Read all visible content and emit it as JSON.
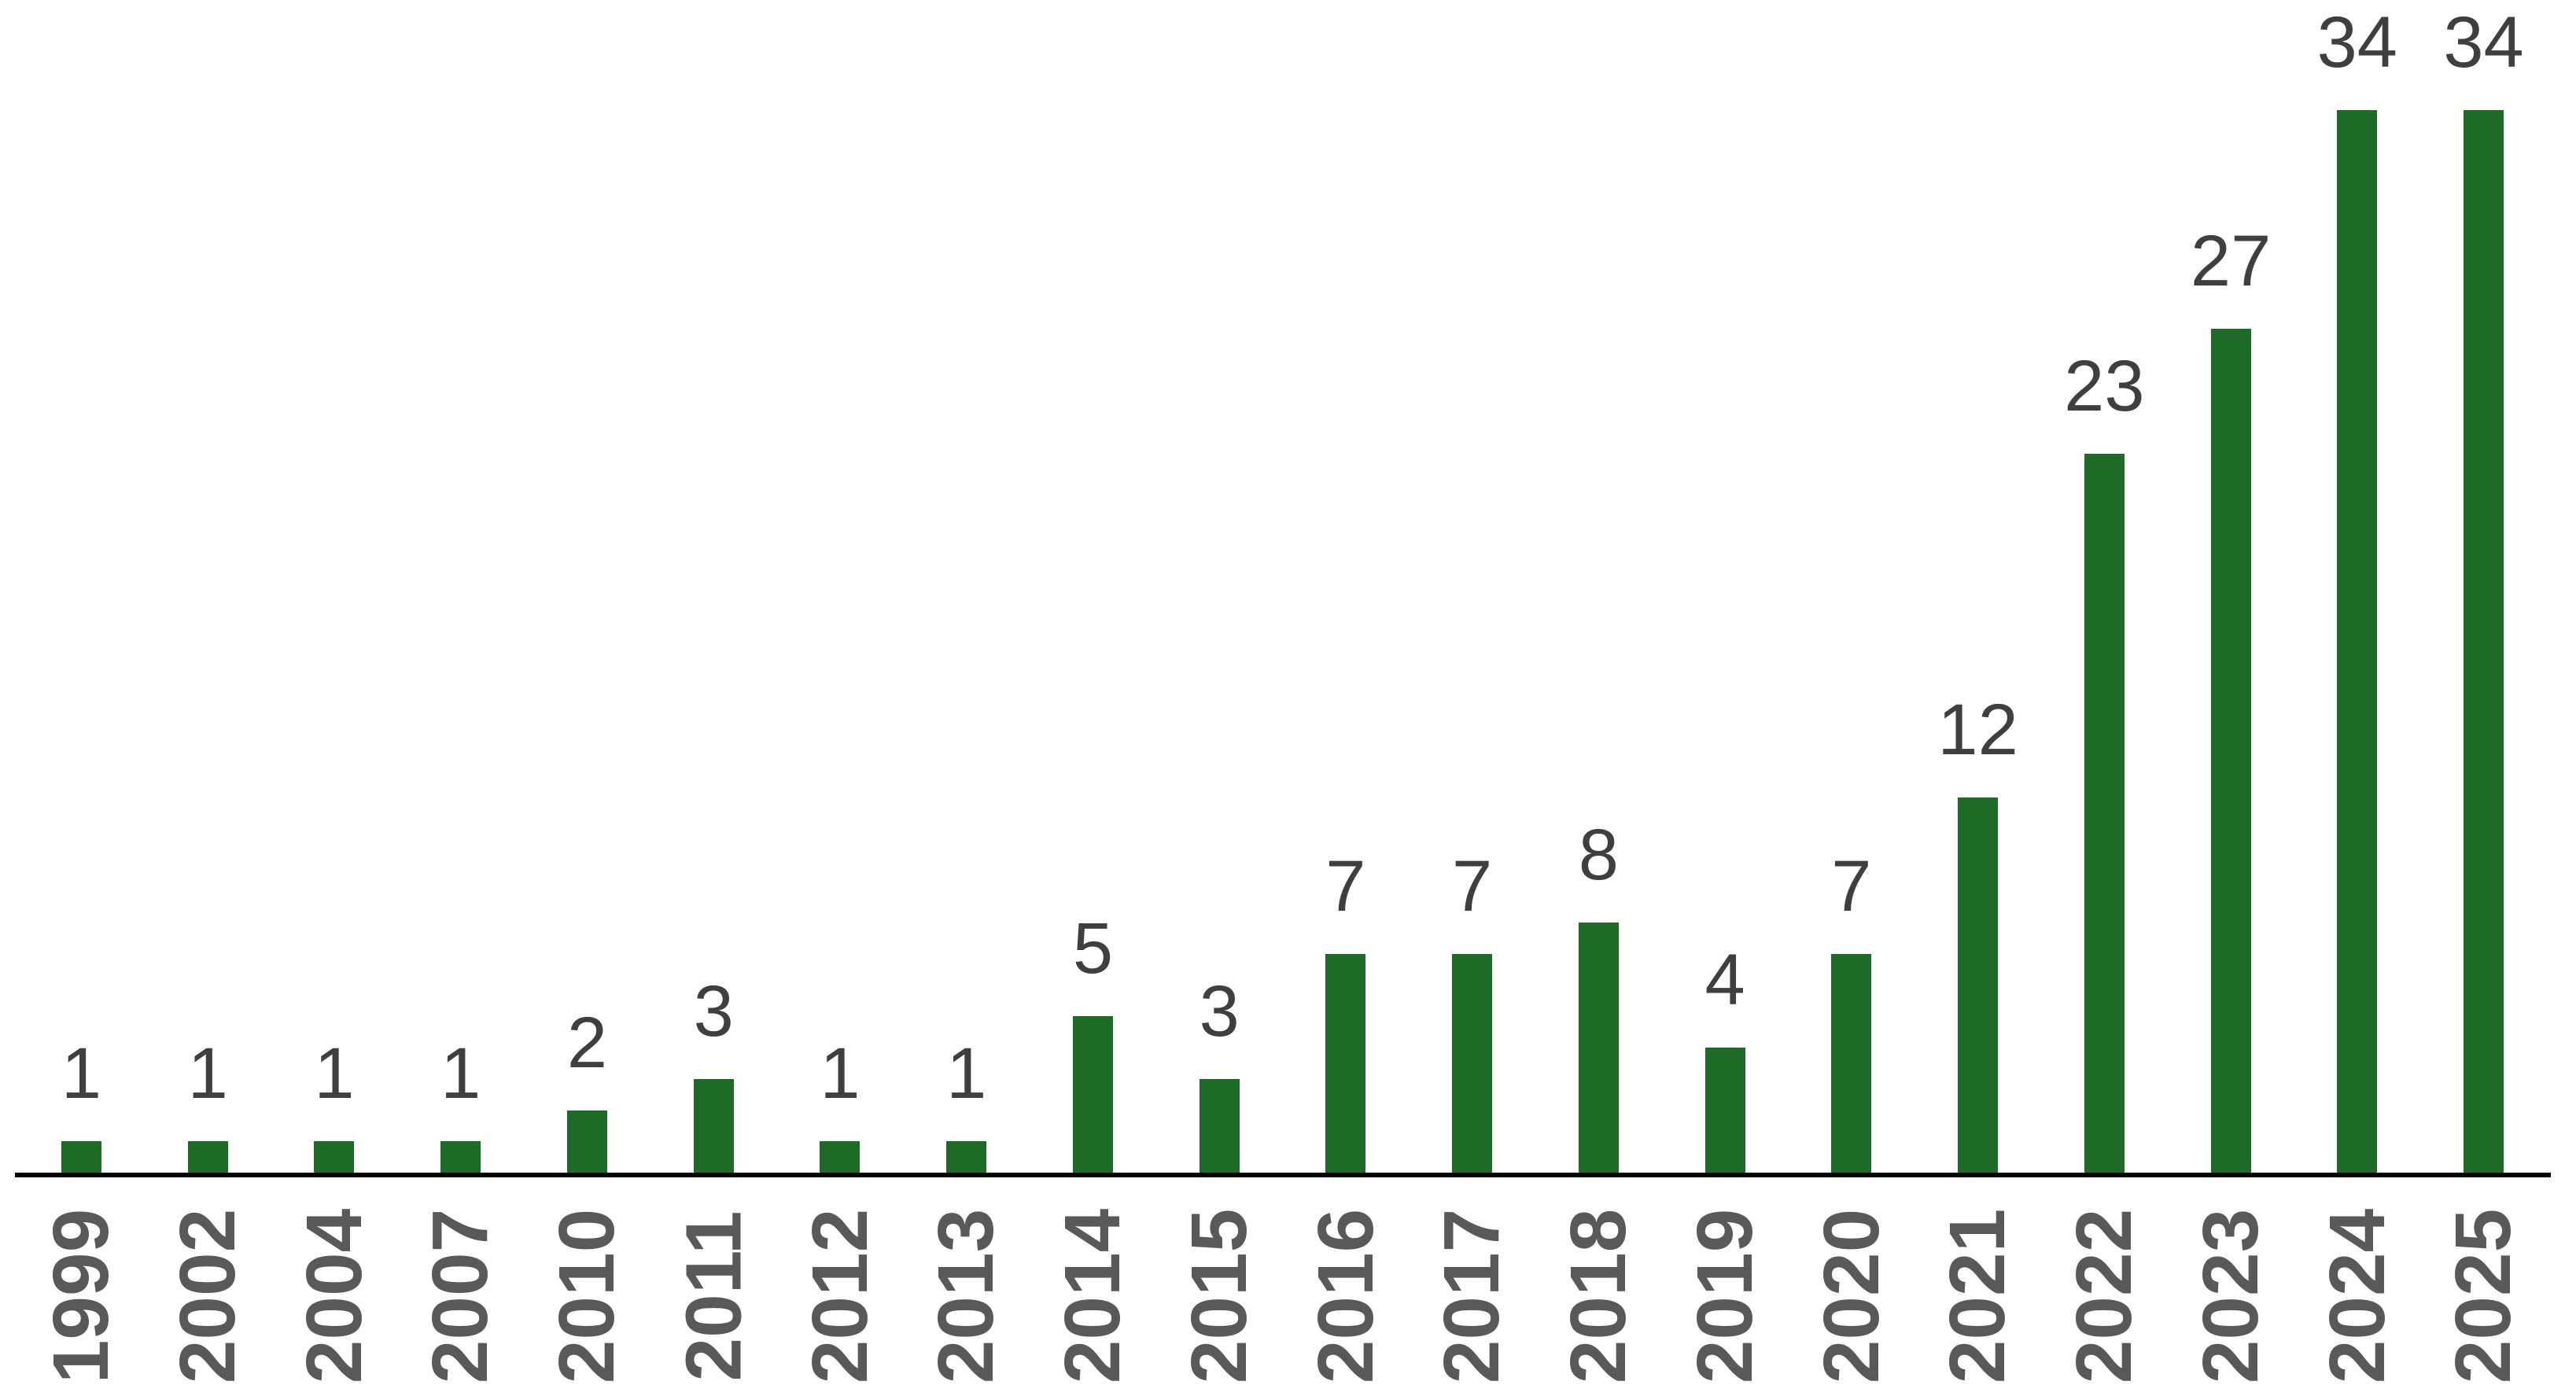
{
  "chart_data": {
    "type": "bar",
    "title": "",
    "xlabel": "",
    "ylabel": "",
    "categories": [
      "1999",
      "2002",
      "2004",
      "2007",
      "2010",
      "2011",
      "2012",
      "2013",
      "2014",
      "2015",
      "2016",
      "2017",
      "2018",
      "2019",
      "2020",
      "2021",
      "2022",
      "2023",
      "2024",
      "2025"
    ],
    "values": [
      1,
      1,
      1,
      1,
      2,
      3,
      1,
      1,
      5,
      3,
      7,
      7,
      8,
      4,
      7,
      12,
      23,
      27,
      34,
      34
    ],
    "ylim": [
      0,
      34
    ],
    "grid": false,
    "legend_position": "none",
    "value_labels_shown": true,
    "tick_label_rotation_degrees": -90,
    "colors": {
      "bar": "#1d6b26",
      "value_label": "#3f3f3f",
      "tick_label": "#595959",
      "axis_line": "#000000",
      "background": "#ffffff"
    }
  }
}
